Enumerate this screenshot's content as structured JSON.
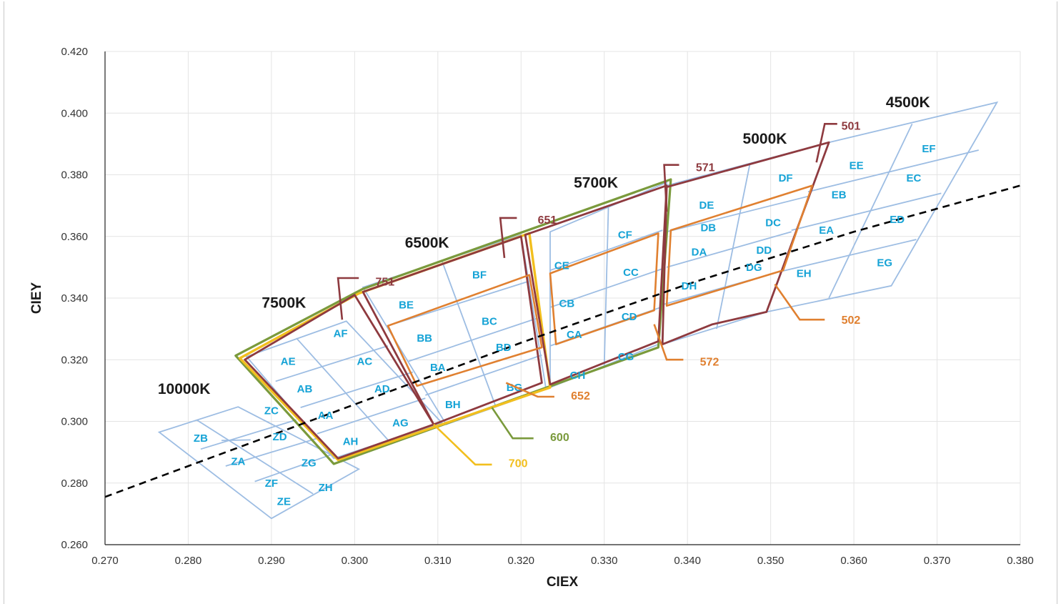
{
  "chart_data": {
    "type": "scatter",
    "xlabel": "CIEX",
    "ylabel": "CIEY",
    "xlim": [
      0.27,
      0.38
    ],
    "ylim": [
      0.26,
      0.42
    ],
    "xticks": [
      "0.270",
      "0.280",
      "0.290",
      "0.300",
      "0.310",
      "0.320",
      "0.330",
      "0.340",
      "0.350",
      "0.360",
      "0.370",
      "0.380"
    ],
    "yticks": [
      "0.260",
      "0.280",
      "0.300",
      "0.320",
      "0.340",
      "0.360",
      "0.380",
      "0.400",
      "0.420"
    ],
    "grid": true,
    "colors": {
      "bin_grid": "#9dbde3",
      "green": "#7a9a3c",
      "yellow": "#f2bf1e",
      "maroon": "#8e3a3f",
      "orange": "#e08030",
      "bin_label": "#16a3d6"
    },
    "planckian_locus": {
      "style": "dashed",
      "color": "#000000",
      "points": [
        [
          0.27,
          0.2755
        ],
        [
          0.3,
          0.3055
        ],
        [
          0.32,
          0.3255
        ],
        [
          0.34,
          0.3445
        ],
        [
          0.36,
          0.3615
        ],
        [
          0.38,
          0.3765
        ]
      ]
    },
    "cct_labels": [
      {
        "text": "10000K",
        "x": 0.2795,
        "y": 0.3105
      },
      {
        "text": "7500K",
        "x": 0.2915,
        "y": 0.3385
      },
      {
        "text": "6500K",
        "x": 0.3087,
        "y": 0.358
      },
      {
        "text": "5700K",
        "x": 0.329,
        "y": 0.3775
      },
      {
        "text": "5000K",
        "x": 0.3493,
        "y": 0.3917
      },
      {
        "text": "4500K",
        "x": 0.3665,
        "y": 0.4035
      }
    ],
    "bins": [
      {
        "name": "ZB",
        "x": 0.2815,
        "y": 0.2945
      },
      {
        "name": "ZC",
        "x": 0.29,
        "y": 0.3035
      },
      {
        "name": "ZD",
        "x": 0.291,
        "y": 0.295
      },
      {
        "name": "ZA",
        "x": 0.286,
        "y": 0.287
      },
      {
        "name": "ZG",
        "x": 0.2945,
        "y": 0.2865
      },
      {
        "name": "ZF",
        "x": 0.29,
        "y": 0.28
      },
      {
        "name": "ZH",
        "x": 0.2965,
        "y": 0.2785
      },
      {
        "name": "ZE",
        "x": 0.2915,
        "y": 0.274
      },
      {
        "name": "AE",
        "x": 0.292,
        "y": 0.3195
      },
      {
        "name": "AF",
        "x": 0.2983,
        "y": 0.3285
      },
      {
        "name": "AB",
        "x": 0.294,
        "y": 0.3105
      },
      {
        "name": "AC",
        "x": 0.3012,
        "y": 0.3195
      },
      {
        "name": "AA",
        "x": 0.2965,
        "y": 0.302
      },
      {
        "name": "AD",
        "x": 0.3033,
        "y": 0.3105
      },
      {
        "name": "AH",
        "x": 0.2995,
        "y": 0.2935
      },
      {
        "name": "AG",
        "x": 0.3055,
        "y": 0.2995
      },
      {
        "name": "BE",
        "x": 0.3062,
        "y": 0.3378
      },
      {
        "name": "BF",
        "x": 0.315,
        "y": 0.3475
      },
      {
        "name": "BB",
        "x": 0.3084,
        "y": 0.327
      },
      {
        "name": "BC",
        "x": 0.3162,
        "y": 0.3325
      },
      {
        "name": "BA",
        "x": 0.31,
        "y": 0.3175
      },
      {
        "name": "BD",
        "x": 0.3179,
        "y": 0.324
      },
      {
        "name": "BH",
        "x": 0.3118,
        "y": 0.3055
      },
      {
        "name": "BG",
        "x": 0.3192,
        "y": 0.311
      },
      {
        "name": "CE",
        "x": 0.3249,
        "y": 0.3505
      },
      {
        "name": "CF",
        "x": 0.3325,
        "y": 0.3605
      },
      {
        "name": "CB",
        "x": 0.3255,
        "y": 0.3383
      },
      {
        "name": "CC",
        "x": 0.3332,
        "y": 0.3483
      },
      {
        "name": "CA",
        "x": 0.3264,
        "y": 0.3282
      },
      {
        "name": "CD",
        "x": 0.333,
        "y": 0.334
      },
      {
        "name": "CH",
        "x": 0.3268,
        "y": 0.315
      },
      {
        "name": "CG",
        "x": 0.3326,
        "y": 0.321
      },
      {
        "name": "DE",
        "x": 0.3423,
        "y": 0.3702
      },
      {
        "name": "DF",
        "x": 0.3518,
        "y": 0.379
      },
      {
        "name": "DB",
        "x": 0.3425,
        "y": 0.3628
      },
      {
        "name": "DC",
        "x": 0.3503,
        "y": 0.3645
      },
      {
        "name": "DA",
        "x": 0.3414,
        "y": 0.355
      },
      {
        "name": "DD",
        "x": 0.3492,
        "y": 0.3555
      },
      {
        "name": "DH",
        "x": 0.3402,
        "y": 0.344
      },
      {
        "name": "DG",
        "x": 0.348,
        "y": 0.35
      },
      {
        "name": "EE",
        "x": 0.3603,
        "y": 0.383
      },
      {
        "name": "EF",
        "x": 0.369,
        "y": 0.3885
      },
      {
        "name": "EB",
        "x": 0.3582,
        "y": 0.3735
      },
      {
        "name": "EC",
        "x": 0.3672,
        "y": 0.379
      },
      {
        "name": "EA",
        "x": 0.3567,
        "y": 0.362
      },
      {
        "name": "ED",
        "x": 0.3652,
        "y": 0.3655
      },
      {
        "name": "EH",
        "x": 0.354,
        "y": 0.348
      },
      {
        "name": "EG",
        "x": 0.3637,
        "y": 0.3515
      }
    ],
    "callouts": [
      {
        "text": "751",
        "color": "maroon",
        "x": 0.3025,
        "y": 0.3455
      },
      {
        "text": "651",
        "color": "maroon",
        "x": 0.322,
        "y": 0.3655
      },
      {
        "text": "571",
        "color": "maroon",
        "x": 0.341,
        "y": 0.3825
      },
      {
        "text": "501",
        "color": "maroon",
        "x": 0.3585,
        "y": 0.396
      },
      {
        "text": "502",
        "color": "orange",
        "x": 0.3585,
        "y": 0.333
      },
      {
        "text": "572",
        "color": "orange",
        "x": 0.3415,
        "y": 0.3195
      },
      {
        "text": "652",
        "color": "orange",
        "x": 0.326,
        "y": 0.3085
      },
      {
        "text": "600",
        "color": "green",
        "x": 0.3235,
        "y": 0.295
      },
      {
        "text": "700",
        "color": "yellow",
        "x": 0.3185,
        "y": 0.2865
      }
    ]
  }
}
